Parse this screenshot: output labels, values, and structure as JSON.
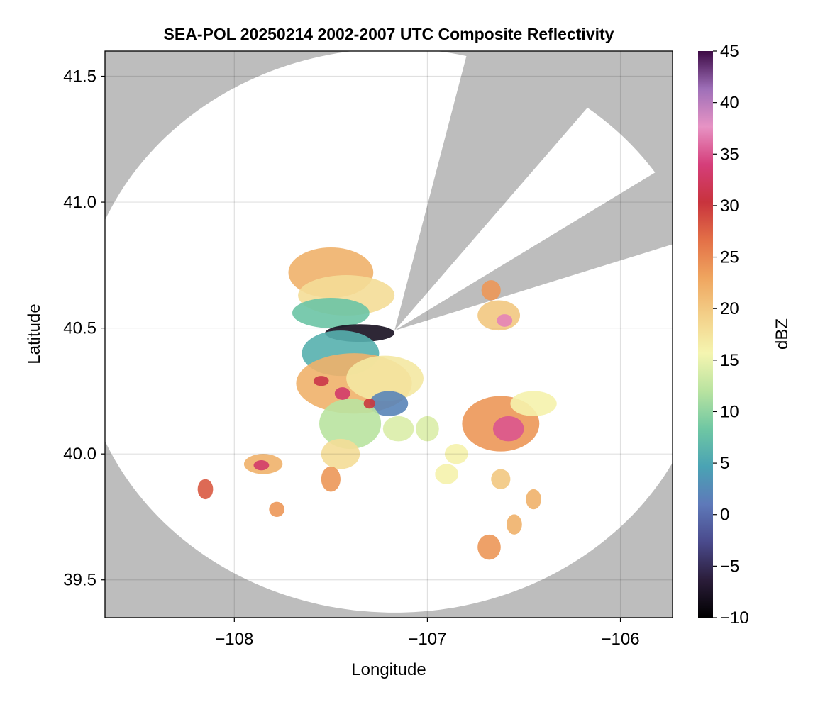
{
  "chart_data": {
    "type": "heatmap",
    "title": "SEA-POL 20250214 2002-2007 UTC Composite Reflectivity",
    "xlabel": "Longitude",
    "ylabel": "Latitude",
    "xlim": [
      -108.67,
      -105.73
    ],
    "ylim": [
      39.35,
      41.6
    ],
    "xticks": [
      -108,
      -107,
      -106
    ],
    "xtick_labels": [
      "−108",
      "−107",
      "−106"
    ],
    "yticks": [
      39.5,
      40.0,
      40.5,
      41.0,
      41.5
    ],
    "ytick_labels": [
      "39.5",
      "40.0",
      "40.5",
      "41.0",
      "41.5"
    ],
    "grid": true,
    "background_color": "#bdbdbd",
    "coverage_color": "#ffffff",
    "radar": {
      "center_lon": -107.17,
      "center_lat": 40.49,
      "range_lon": 1.63,
      "range_lat": 1.12
    },
    "blocked_sectors": [
      {
        "from_azimuth_deg": 13.2,
        "to_azimuth_deg": 37.8
      },
      {
        "from_azimuth_deg": 55.9,
        "to_azimuth_deg": 70.9
      }
    ],
    "colorbar": {
      "label": "dBZ",
      "min": -10,
      "max": 45,
      "ticks": [
        -10,
        -5,
        0,
        5,
        10,
        15,
        20,
        25,
        30,
        35,
        40,
        45
      ],
      "tick_labels": [
        "−10",
        "−5",
        "0",
        "5",
        "10",
        "15",
        "20",
        "25",
        "30",
        "35",
        "40",
        "45"
      ],
      "colors": [
        "#000000",
        "#2b1d3a",
        "#4a4a8c",
        "#5e79b9",
        "#4aa3b4",
        "#6fc7a3",
        "#b9e3a0",
        "#f5f5b0",
        "#f3d089",
        "#efa55f",
        "#e37047",
        "#c8333d",
        "#d53e7a",
        "#e793c4",
        "#9e6fb8",
        "#3d0a45"
      ]
    },
    "echo_cells": [
      {
        "lon": -107.5,
        "lat": 40.72,
        "rlon": 0.22,
        "rlat": 0.1,
        "dbz": 22
      },
      {
        "lon": -107.42,
        "lat": 40.63,
        "rlon": 0.25,
        "rlat": 0.08,
        "dbz": 18
      },
      {
        "lon": -107.5,
        "lat": 40.56,
        "rlon": 0.2,
        "rlat": 0.06,
        "dbz": 8
      },
      {
        "lon": -107.35,
        "lat": 40.48,
        "rlon": 0.18,
        "rlat": 0.035,
        "dbz": -8
      },
      {
        "lon": -107.45,
        "lat": 40.4,
        "rlon": 0.2,
        "rlat": 0.09,
        "dbz": 6
      },
      {
        "lon": -107.38,
        "lat": 40.28,
        "rlon": 0.3,
        "rlat": 0.12,
        "dbz": 22
      },
      {
        "lon": -107.22,
        "lat": 40.3,
        "rlon": 0.2,
        "rlat": 0.09,
        "dbz": 17
      },
      {
        "lon": -107.2,
        "lat": 40.2,
        "rlon": 0.1,
        "rlat": 0.05,
        "dbz": 2
      },
      {
        "lon": -107.4,
        "lat": 40.12,
        "rlon": 0.16,
        "rlat": 0.1,
        "dbz": 12
      },
      {
        "lon": -107.44,
        "lat": 40.24,
        "rlon": 0.04,
        "rlat": 0.025,
        "dbz": 33
      },
      {
        "lon": -107.55,
        "lat": 40.29,
        "rlon": 0.04,
        "rlat": 0.02,
        "dbz": 31
      },
      {
        "lon": -107.3,
        "lat": 40.2,
        "rlon": 0.03,
        "rlat": 0.02,
        "dbz": 30
      },
      {
        "lon": -107.15,
        "lat": 40.1,
        "rlon": 0.08,
        "rlat": 0.05,
        "dbz": 14
      },
      {
        "lon": -107.45,
        "lat": 40.0,
        "rlon": 0.1,
        "rlat": 0.06,
        "dbz": 18
      },
      {
        "lon": -107.5,
        "lat": 39.9,
        "rlon": 0.05,
        "rlat": 0.05,
        "dbz": 24
      },
      {
        "lon": -106.62,
        "lat": 40.12,
        "rlon": 0.2,
        "rlat": 0.11,
        "dbz": 24
      },
      {
        "lon": -106.58,
        "lat": 40.1,
        "rlon": 0.08,
        "rlat": 0.05,
        "dbz": 35
      },
      {
        "lon": -106.45,
        "lat": 40.2,
        "rlon": 0.12,
        "rlat": 0.05,
        "dbz": 16
      },
      {
        "lon": -106.63,
        "lat": 40.55,
        "rlon": 0.11,
        "rlat": 0.06,
        "dbz": 20
      },
      {
        "lon": -106.6,
        "lat": 40.53,
        "rlon": 0.04,
        "rlat": 0.025,
        "dbz": 37
      },
      {
        "lon": -106.67,
        "lat": 40.65,
        "rlon": 0.05,
        "rlat": 0.04,
        "dbz": 24
      },
      {
        "lon": -107.85,
        "lat": 39.96,
        "rlon": 0.1,
        "rlat": 0.04,
        "dbz": 22
      },
      {
        "lon": -107.86,
        "lat": 39.955,
        "rlon": 0.04,
        "rlat": 0.02,
        "dbz": 33
      },
      {
        "lon": -108.15,
        "lat": 39.86,
        "rlon": 0.04,
        "rlat": 0.04,
        "dbz": 28
      },
      {
        "lon": -106.68,
        "lat": 39.63,
        "rlon": 0.06,
        "rlat": 0.05,
        "dbz": 24
      },
      {
        "lon": -106.55,
        "lat": 39.72,
        "rlon": 0.04,
        "rlat": 0.04,
        "dbz": 22
      },
      {
        "lon": -106.9,
        "lat": 39.92,
        "rlon": 0.06,
        "rlat": 0.04,
        "dbz": 16
      },
      {
        "lon": -106.62,
        "lat": 39.9,
        "rlon": 0.05,
        "rlat": 0.04,
        "dbz": 20
      },
      {
        "lon": -106.45,
        "lat": 39.82,
        "rlon": 0.04,
        "rlat": 0.04,
        "dbz": 22
      },
      {
        "lon": -107.78,
        "lat": 39.78,
        "rlon": 0.04,
        "rlat": 0.03,
        "dbz": 24
      },
      {
        "lon": -107.0,
        "lat": 40.1,
        "rlon": 0.06,
        "rlat": 0.05,
        "dbz": 14
      },
      {
        "lon": -106.85,
        "lat": 40.0,
        "rlon": 0.06,
        "rlat": 0.04,
        "dbz": 16
      }
    ]
  }
}
